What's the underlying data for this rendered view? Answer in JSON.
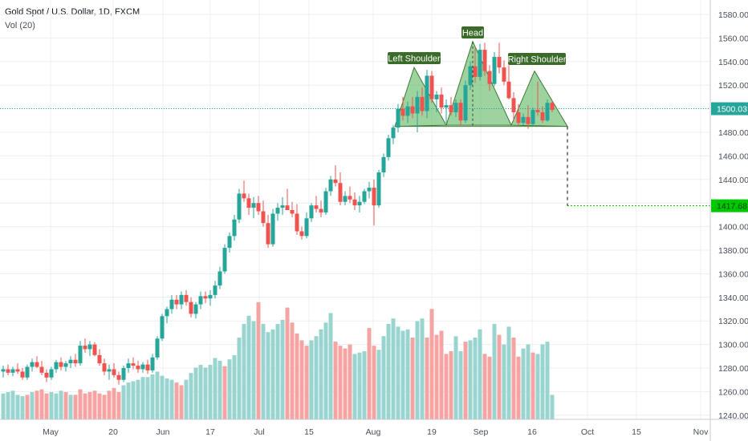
{
  "header": {
    "symbol_line": "Gold Spot / U.S. Dollar, 1D, FXCM",
    "indicator_line": "Vol (20)"
  },
  "chart_data": {
    "type": "candlestick",
    "y_axis": {
      "ticks": [
        "1240.00",
        "1260.00",
        "1280.00",
        "1300.00",
        "1320.00",
        "1340.00",
        "1360.00",
        "1380.00",
        "1400.00",
        "1420.00",
        "1440.00",
        "1460.00",
        "1480.00",
        "1500.00",
        "1520.00",
        "1540.00",
        "1560.00",
        "1580.00"
      ],
      "range": [
        1236,
        1588
      ],
      "position": "right"
    },
    "x_axis": {
      "ticks": [
        "May",
        "20",
        "Jun",
        "17",
        "Jul",
        "15",
        "Aug",
        "19",
        "Sep",
        "16",
        "Oct",
        "15",
        "Nov"
      ]
    },
    "grid": true,
    "price_labels": [
      {
        "text": "1500.03",
        "value": 1500.03,
        "color": "#26a69a"
      },
      {
        "text": "1417.68",
        "value": 1417.68,
        "color": "#00c800"
      }
    ],
    "pattern": {
      "name": "head-and-shoulders",
      "labels": [
        "Left Shoulder",
        "Head",
        "Right Shoulder"
      ],
      "neckline": 1485,
      "target": 1417.68,
      "fill_color": "#4caf50",
      "label_bg": "#3a6b29"
    },
    "colors": {
      "up": "#26a69a",
      "down": "#ef5350",
      "vol_up": "#9ad4cf",
      "vol_down": "#f4a5a3"
    },
    "candles": [
      [
        1277,
        1282,
        1272,
        1279
      ],
      [
        1279,
        1283,
        1274,
        1276
      ],
      [
        1276,
        1281,
        1273,
        1279
      ],
      [
        1279,
        1284,
        1275,
        1277
      ],
      [
        1277,
        1280,
        1270,
        1272
      ],
      [
        1272,
        1283,
        1270,
        1281
      ],
      [
        1281,
        1288,
        1277,
        1285
      ],
      [
        1285,
        1290,
        1280,
        1281
      ],
      [
        1281,
        1286,
        1274,
        1276
      ],
      [
        1276,
        1279,
        1268,
        1272
      ],
      [
        1272,
        1281,
        1270,
        1279
      ],
      [
        1279,
        1287,
        1276,
        1285
      ],
      [
        1285,
        1289,
        1278,
        1281
      ],
      [
        1281,
        1286,
        1277,
        1284
      ],
      [
        1284,
        1290,
        1280,
        1287
      ],
      [
        1287,
        1292,
        1281,
        1284
      ],
      [
        1284,
        1303,
        1282,
        1299
      ],
      [
        1299,
        1305,
        1293,
        1296
      ],
      [
        1296,
        1303,
        1290,
        1300
      ],
      [
        1300,
        1302,
        1290,
        1291
      ],
      [
        1291,
        1296,
        1282,
        1284
      ],
      [
        1284,
        1288,
        1274,
        1277
      ],
      [
        1277,
        1283,
        1270,
        1279
      ],
      [
        1279,
        1284,
        1272,
        1274
      ],
      [
        1274,
        1277,
        1266,
        1270
      ],
      [
        1270,
        1282,
        1268,
        1280
      ],
      [
        1280,
        1288,
        1276,
        1284
      ],
      [
        1284,
        1289,
        1279,
        1282
      ],
      [
        1282,
        1286,
        1276,
        1279
      ],
      [
        1279,
        1285,
        1276,
        1283
      ],
      [
        1283,
        1287,
        1275,
        1278
      ],
      [
        1278,
        1292,
        1276,
        1289
      ],
      [
        1289,
        1307,
        1287,
        1305
      ],
      [
        1305,
        1326,
        1303,
        1324
      ],
      [
        1324,
        1332,
        1318,
        1330
      ],
      [
        1330,
        1342,
        1326,
        1338
      ],
      [
        1338,
        1342,
        1330,
        1334
      ],
      [
        1334,
        1345,
        1330,
        1342
      ],
      [
        1342,
        1346,
        1333,
        1336
      ],
      [
        1336,
        1340,
        1323,
        1326
      ],
      [
        1326,
        1336,
        1322,
        1334
      ],
      [
        1334,
        1345,
        1330,
        1341
      ],
      [
        1341,
        1345,
        1335,
        1339
      ],
      [
        1339,
        1346,
        1333,
        1342
      ],
      [
        1342,
        1354,
        1339,
        1350
      ],
      [
        1350,
        1366,
        1347,
        1362
      ],
      [
        1362,
        1385,
        1360,
        1382
      ],
      [
        1382,
        1395,
        1378,
        1392
      ],
      [
        1392,
        1410,
        1388,
        1406
      ],
      [
        1406,
        1432,
        1403,
        1428
      ],
      [
        1428,
        1439,
        1421,
        1424
      ],
      [
        1424,
        1428,
        1410,
        1416
      ],
      [
        1416,
        1425,
        1407,
        1420
      ],
      [
        1420,
        1426,
        1410,
        1413
      ],
      [
        1413,
        1422,
        1400,
        1403
      ],
      [
        1403,
        1410,
        1382,
        1385
      ],
      [
        1385,
        1415,
        1383,
        1411
      ],
      [
        1411,
        1420,
        1405,
        1416
      ],
      [
        1416,
        1425,
        1410,
        1418
      ],
      [
        1418,
        1432,
        1414,
        1414
      ],
      [
        1414,
        1421,
        1408,
        1411
      ],
      [
        1411,
        1419,
        1393,
        1396
      ],
      [
        1396,
        1400,
        1389,
        1392
      ],
      [
        1392,
        1412,
        1390,
        1407
      ],
      [
        1407,
        1420,
        1404,
        1418
      ],
      [
        1418,
        1426,
        1412,
        1415
      ],
      [
        1415,
        1422,
        1408,
        1412
      ],
      [
        1412,
        1433,
        1410,
        1430
      ],
      [
        1430,
        1443,
        1426,
        1440
      ],
      [
        1440,
        1452,
        1434,
        1437
      ],
      [
        1437,
        1446,
        1418,
        1421
      ],
      [
        1421,
        1430,
        1418,
        1426
      ],
      [
        1426,
        1434,
        1420,
        1423
      ],
      [
        1423,
        1429,
        1414,
        1418
      ],
      [
        1418,
        1426,
        1412,
        1421
      ],
      [
        1421,
        1432,
        1419,
        1430
      ],
      [
        1430,
        1438,
        1424,
        1433
      ],
      [
        1433,
        1440,
        1401,
        1418
      ],
      [
        1418,
        1448,
        1416,
        1446
      ],
      [
        1446,
        1462,
        1442,
        1459
      ],
      [
        1459,
        1478,
        1456,
        1475
      ],
      [
        1475,
        1486,
        1470,
        1484
      ],
      [
        1484,
        1504,
        1480,
        1500
      ],
      [
        1500,
        1510,
        1490,
        1494
      ],
      [
        1494,
        1506,
        1488,
        1502
      ],
      [
        1502,
        1510,
        1492,
        1496
      ],
      [
        1496,
        1515,
        1480,
        1510
      ],
      [
        1510,
        1518,
        1494,
        1498
      ],
      [
        1498,
        1533,
        1492,
        1528
      ],
      [
        1528,
        1532,
        1505,
        1508
      ],
      [
        1508,
        1515,
        1497,
        1512
      ],
      [
        1512,
        1518,
        1496,
        1501
      ],
      [
        1501,
        1508,
        1488,
        1503
      ],
      [
        1503,
        1510,
        1494,
        1497
      ],
      [
        1497,
        1508,
        1493,
        1505
      ],
      [
        1505,
        1508,
        1486,
        1490
      ],
      [
        1490,
        1524,
        1488,
        1520
      ],
      [
        1520,
        1540,
        1516,
        1536
      ],
      [
        1536,
        1551,
        1522,
        1527
      ],
      [
        1527,
        1555,
        1524,
        1550
      ],
      [
        1550,
        1556,
        1528,
        1532
      ],
      [
        1532,
        1537,
        1515,
        1521
      ],
      [
        1521,
        1548,
        1519,
        1544
      ],
      [
        1544,
        1556,
        1530,
        1535
      ],
      [
        1535,
        1541,
        1520,
        1523
      ],
      [
        1523,
        1537,
        1508,
        1509
      ],
      [
        1509,
        1514,
        1490,
        1497
      ],
      [
        1497,
        1504,
        1485,
        1488
      ],
      [
        1488,
        1496,
        1486,
        1493
      ],
      [
        1493,
        1503,
        1483,
        1487
      ],
      [
        1487,
        1501,
        1486,
        1499
      ],
      [
        1499,
        1523,
        1494,
        1497
      ],
      [
        1497,
        1502,
        1488,
        1490
      ],
      [
        1490,
        1508,
        1489,
        1505
      ],
      [
        1505,
        1507,
        1497,
        1499
      ]
    ],
    "volume": [
      [
        19,
        "up"
      ],
      [
        20,
        "up"
      ],
      [
        21,
        "up"
      ],
      [
        18,
        "up"
      ],
      [
        17,
        "up"
      ],
      [
        18,
        "down"
      ],
      [
        20,
        "up"
      ],
      [
        21,
        "down"
      ],
      [
        22,
        "down"
      ],
      [
        19,
        "down"
      ],
      [
        20,
        "up"
      ],
      [
        19,
        "up"
      ],
      [
        21,
        "up"
      ],
      [
        20,
        "down"
      ],
      [
        18,
        "up"
      ],
      [
        18,
        "down"
      ],
      [
        22,
        "down"
      ],
      [
        19,
        "down"
      ],
      [
        20,
        "down"
      ],
      [
        21,
        "down"
      ],
      [
        19,
        "down"
      ],
      [
        18,
        "down"
      ],
      [
        21,
        "down"
      ],
      [
        23,
        "down"
      ],
      [
        20,
        "down"
      ],
      [
        25,
        "up"
      ],
      [
        27,
        "up"
      ],
      [
        28,
        "up"
      ],
      [
        29,
        "up"
      ],
      [
        31,
        "up"
      ],
      [
        31,
        "up"
      ],
      [
        33,
        "up"
      ],
      [
        35,
        "up"
      ],
      [
        32,
        "up"
      ],
      [
        30,
        "up"
      ],
      [
        29,
        "up"
      ],
      [
        27,
        "down"
      ],
      [
        25,
        "down"
      ],
      [
        29,
        "up"
      ],
      [
        34,
        "up"
      ],
      [
        38,
        "up"
      ],
      [
        40,
        "up"
      ],
      [
        38,
        "up"
      ],
      [
        40,
        "up"
      ],
      [
        45,
        "up"
      ],
      [
        43,
        "up"
      ],
      [
        39,
        "down"
      ],
      [
        44,
        "up"
      ],
      [
        47,
        "up"
      ],
      [
        60,
        "up"
      ],
      [
        70,
        "up"
      ],
      [
        76,
        "up"
      ],
      [
        72,
        "up"
      ],
      [
        86,
        "down"
      ],
      [
        70,
        "up"
      ],
      [
        64,
        "up"
      ],
      [
        66,
        "up"
      ],
      [
        70,
        "up"
      ],
      [
        73,
        "up"
      ],
      [
        82,
        "down"
      ],
      [
        71,
        "down"
      ],
      [
        63,
        "down"
      ],
      [
        58,
        "down"
      ],
      [
        54,
        "down"
      ],
      [
        58,
        "up"
      ],
      [
        61,
        "up"
      ],
      [
        66,
        "up"
      ],
      [
        71,
        "up"
      ],
      [
        78,
        "up"
      ],
      [
        57,
        "down"
      ],
      [
        54,
        "down"
      ],
      [
        52,
        "down"
      ],
      [
        55,
        "down"
      ],
      [
        48,
        "up"
      ],
      [
        49,
        "up"
      ],
      [
        50,
        "up"
      ],
      [
        67,
        "down"
      ],
      [
        54,
        "down"
      ],
      [
        51,
        "up"
      ],
      [
        61,
        "up"
      ],
      [
        70,
        "up"
      ],
      [
        74,
        "up"
      ],
      [
        68,
        "up"
      ],
      [
        65,
        "up"
      ],
      [
        66,
        "up"
      ],
      [
        60,
        "down"
      ],
      [
        72,
        "up"
      ],
      [
        74,
        "up"
      ],
      [
        60,
        "down"
      ],
      [
        81,
        "down"
      ],
      [
        62,
        "down"
      ],
      [
        65,
        "down"
      ],
      [
        48,
        "down"
      ],
      [
        50,
        "down"
      ],
      [
        61,
        "up"
      ],
      [
        50,
        "up"
      ],
      [
        57,
        "down"
      ],
      [
        58,
        "up"
      ],
      [
        60,
        "up"
      ],
      [
        66,
        "up"
      ],
      [
        48,
        "down"
      ],
      [
        46,
        "down"
      ],
      [
        70,
        "up"
      ],
      [
        62,
        "down"
      ],
      [
        55,
        "up"
      ],
      [
        68,
        "up"
      ],
      [
        60,
        "down"
      ],
      [
        46,
        "down"
      ],
      [
        52,
        "up"
      ],
      [
        55,
        "up"
      ],
      [
        49,
        "down"
      ],
      [
        48,
        "up"
      ],
      [
        55,
        "up"
      ],
      [
        57,
        "up"
      ],
      [
        18,
        "up"
      ]
    ]
  }
}
